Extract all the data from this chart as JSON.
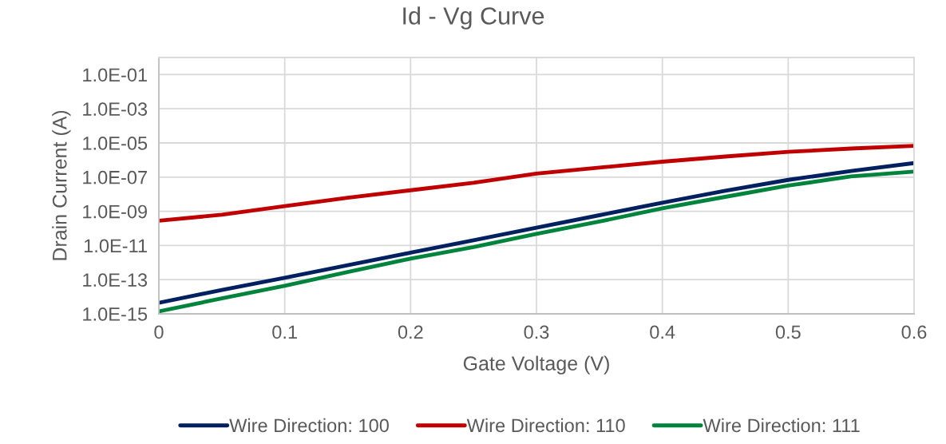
{
  "chart_data": {
    "type": "line",
    "title": "Id - Vg Curve",
    "xlabel": "Gate Voltage (V)",
    "ylabel": "Drain Current (A)",
    "x": [
      0,
      0.05,
      0.1,
      0.15,
      0.2,
      0.25,
      0.3,
      0.35,
      0.4,
      0.45,
      0.5,
      0.55,
      0.6
    ],
    "series": [
      {
        "name": "Wire Direction: 100",
        "color": "#002060",
        "values": [
          4.4e-15,
          2.5e-14,
          1.3e-13,
          7e-13,
          3.8e-12,
          2e-11,
          1.1e-10,
          5.9e-10,
          3.2e-09,
          1.6e-08,
          6.9e-08,
          2.3e-07,
          6.6e-07
        ]
      },
      {
        "name": "Wire Direction: 110",
        "color": "#c00000",
        "values": [
          2.8e-10,
          6.3e-10,
          2e-09,
          6.2e-09,
          1.7e-08,
          4.7e-08,
          1.6e-07,
          3.6e-07,
          8e-07,
          1.6e-06,
          3e-06,
          4.7e-06,
          6.8e-06
        ]
      },
      {
        "name": "Wire Direction: 111",
        "color": "#00843d",
        "values": [
          1.4e-15,
          8e-15,
          4.4e-14,
          2.8e-13,
          1.7e-12,
          8e-12,
          4.8e-11,
          2.5e-10,
          1.5e-09,
          7e-09,
          3.2e-08,
          1.1e-07,
          2.1e-07
        ]
      }
    ],
    "log": "y",
    "xlim": [
      0,
      0.6
    ],
    "xticks": [
      0,
      0.1,
      0.2,
      0.3,
      0.4,
      0.5,
      0.6
    ],
    "ylim": [
      1e-15,
      1
    ],
    "yticks": [
      {
        "value": 1e-15,
        "label": "1.0E-15"
      },
      {
        "value": 1e-13,
        "label": "1.0E-13"
      },
      {
        "value": 1e-11,
        "label": "1.0E-11"
      },
      {
        "value": 1e-09,
        "label": "1.0E-09"
      },
      {
        "value": 1e-07,
        "label": "1.0E-07"
      },
      {
        "value": 1e-05,
        "label": "1.0E-05"
      },
      {
        "value": 0.001,
        "label": "1.0E-03"
      },
      {
        "value": 0.1,
        "label": "1.0E-01"
      }
    ],
    "grid": true,
    "legend": "bottom",
    "marker": "none",
    "line_style": "solid"
  }
}
